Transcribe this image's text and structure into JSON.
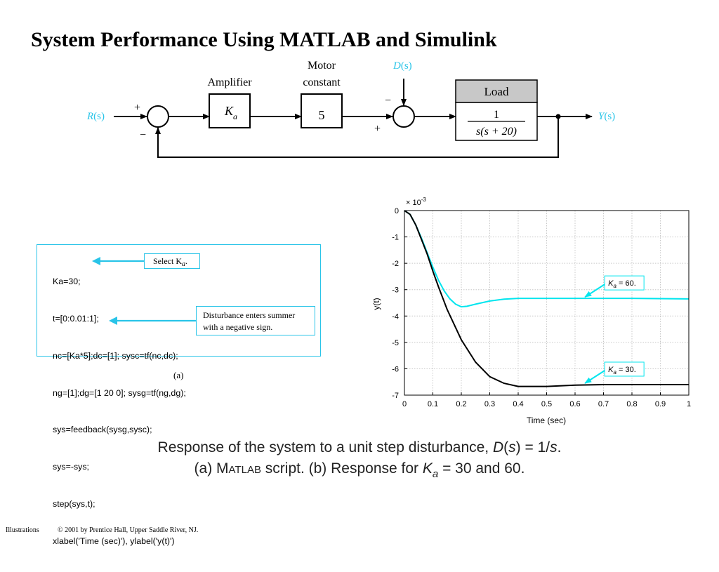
{
  "slide": {
    "title": "System Performance Using MATLAB and Simulink",
    "footer_left": "Illustrations",
    "footer_right": "© 2001 by Prentice Hall, Upper Saddle River, NJ."
  },
  "diagram": {
    "input": {
      "R": "R",
      "s": "(s)"
    },
    "output": {
      "Y": "Y",
      "s": "(s)"
    },
    "disturbance": {
      "D": "D",
      "s": "(s)"
    },
    "amplifier": {
      "title": "Amplifier",
      "K": "K",
      "sub": "a"
    },
    "motor": {
      "title_line1": "Motor",
      "title_line2": "constant",
      "value": "5"
    },
    "load": {
      "title": "Load",
      "numerator": "1",
      "denominator": "s(s + 20)"
    },
    "summer1_signs": {
      "top": "+",
      "bottom": "−"
    },
    "summer2_signs": {
      "top": "−",
      "bottom": "+"
    },
    "colors": {
      "accent": "#29c4e8",
      "box_header": "#c8c8c8"
    }
  },
  "code": {
    "lines": [
      "Ka=30;",
      "t=[0:0.01:1];",
      "nc=[Ka*5];dc=[1]; sysc=tf(nc,dc);",
      "ng=[1];dg=[1 20 0]; sysg=tf(ng,dg);",
      "sys=feedback(sysg,sysc);",
      "sys=-sys;",
      "step(sys,t);",
      "xlabel('Time (sec)'), ylabel('y(t)')"
    ],
    "callout_select": "Select K",
    "callout_select_sub": "a",
    "callout_select_tail": ".",
    "callout_disturbance_line1": "Disturbance enters summer",
    "callout_disturbance_line2": "with a negative sign.",
    "sublabel": "(a)"
  },
  "chart_data": {
    "type": "line",
    "xlabel": "Time (sec)",
    "ylabel": "y(t)",
    "exponent_label": "× 10",
    "exponent_power": "-3",
    "xlim": [
      0,
      1
    ],
    "ylim": [
      -7,
      0
    ],
    "xticks": [
      0,
      0.1,
      0.2,
      0.3,
      0.4,
      0.5,
      0.6,
      0.7,
      0.8,
      0.9,
      1
    ],
    "xtick_labels": [
      "0",
      "0.1",
      "0.2",
      "0.3",
      "0.4",
      "0.5",
      "0.6",
      "0.7",
      "0.8",
      "0.9",
      "1"
    ],
    "yticks": [
      0,
      -1,
      -2,
      -3,
      -4,
      -5,
      -6,
      -7
    ],
    "ytick_labels": [
      "0",
      "-1",
      "-2",
      "-3",
      "-4",
      "-5",
      "-6",
      "-7"
    ],
    "grid": true,
    "series": [
      {
        "name": "Ka = 60",
        "color": "#00e5ee",
        "x": [
          0,
          0.02,
          0.04,
          0.06,
          0.08,
          0.1,
          0.12,
          0.14,
          0.16,
          0.18,
          0.2,
          0.22,
          0.25,
          0.3,
          0.35,
          0.4,
          0.5,
          0.6,
          0.7,
          0.8,
          0.9,
          1
        ],
        "values": [
          0,
          -0.15,
          -0.55,
          -1.05,
          -1.6,
          -2.15,
          -2.65,
          -3.05,
          -3.35,
          -3.55,
          -3.65,
          -3.63,
          -3.55,
          -3.43,
          -3.36,
          -3.33,
          -3.33,
          -3.33,
          -3.33,
          -3.33,
          -3.34,
          -3.35
        ]
      },
      {
        "name": "Ka = 30",
        "color": "#000000",
        "x": [
          0,
          0.02,
          0.04,
          0.06,
          0.08,
          0.1,
          0.12,
          0.15,
          0.2,
          0.25,
          0.3,
          0.35,
          0.4,
          0.5,
          0.6,
          0.7,
          0.8,
          0.9,
          1
        ],
        "values": [
          0,
          -0.15,
          -0.55,
          -1.1,
          -1.65,
          -2.3,
          -2.9,
          -3.75,
          -4.9,
          -5.75,
          -6.3,
          -6.55,
          -6.67,
          -6.67,
          -6.62,
          -6.6,
          -6.6,
          -6.6,
          -6.6
        ]
      }
    ],
    "annotations": [
      {
        "K": "K",
        "sub": "a",
        "text": " = 60.",
        "at_x": 0.63,
        "at_y": -3.33
      },
      {
        "K": "K",
        "sub": "a",
        "text": " = 30.",
        "at_x": 0.63,
        "at_y": -6.6
      }
    ]
  },
  "caption": {
    "line1_prefix": "Response of the system to a unit step disturbance, ",
    "line1_D": "D",
    "line1_mid": "(",
    "line1_s": "s",
    "line1_eq": ") = 1/",
    "line1_s2": "s",
    "line1_end": ".",
    "line2_prefix": "(a) M",
    "line2_small": "ATLAB",
    "line2_mid": " script. (b) Response for ",
    "line2_K": "K",
    "line2_sub": "a",
    "line2_end": " = 30 and 60."
  }
}
